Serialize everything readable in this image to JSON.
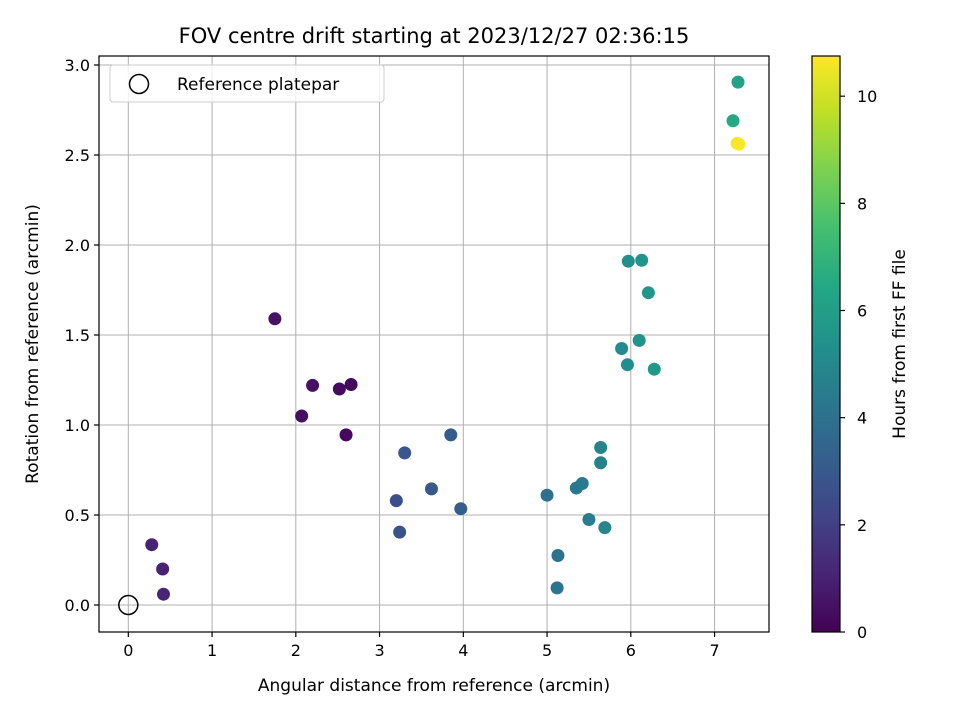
{
  "chart_data": {
    "type": "scatter",
    "title": "FOV centre drift starting at 2023/12/27 02:36:15",
    "xlabel": "Angular distance from reference (arcmin)",
    "ylabel": "Rotation from reference (arcmin)",
    "xlim": [
      -0.35,
      7.65
    ],
    "ylim": [
      -0.15,
      3.05
    ],
    "xticks": [
      0,
      1,
      2,
      3,
      4,
      5,
      6,
      7
    ],
    "yticks": [
      0.0,
      0.5,
      1.0,
      1.5,
      2.0,
      2.5,
      3.0
    ],
    "xtick_labels": [
      "0",
      "1",
      "2",
      "3",
      "4",
      "5",
      "6",
      "7"
    ],
    "ytick_labels": [
      "0.0",
      "0.5",
      "1.0",
      "1.5",
      "2.0",
      "2.5",
      "3.0"
    ],
    "grid": true,
    "legend": {
      "position": "top-left",
      "entries": [
        "Reference platepar"
      ]
    },
    "reference_point": {
      "x": 0.0,
      "y": 0.0
    },
    "colorbar": {
      "label": "Hours from first FF file",
      "range": [
        0,
        10.75
      ],
      "ticks": [
        0,
        2,
        4,
        6,
        8,
        10
      ],
      "tick_labels": [
        "0",
        "2",
        "4",
        "6",
        "8",
        "10"
      ],
      "colormap": "viridis"
    },
    "points": [
      {
        "x": 0.28,
        "y": 0.335,
        "c": 1.0
      },
      {
        "x": 0.41,
        "y": 0.2,
        "c": 1.05
      },
      {
        "x": 0.42,
        "y": 0.06,
        "c": 1.1
      },
      {
        "x": 1.75,
        "y": 1.59,
        "c": 0.55
      },
      {
        "x": 2.07,
        "y": 1.05,
        "c": 0.45
      },
      {
        "x": 2.2,
        "y": 1.22,
        "c": 0.5
      },
      {
        "x": 2.52,
        "y": 1.2,
        "c": 0.3
      },
      {
        "x": 2.66,
        "y": 1.225,
        "c": 0.25
      },
      {
        "x": 2.6,
        "y": 0.945,
        "c": 0.2
      },
      {
        "x": 3.2,
        "y": 0.58,
        "c": 2.6
      },
      {
        "x": 3.24,
        "y": 0.405,
        "c": 2.8
      },
      {
        "x": 3.3,
        "y": 0.845,
        "c": 2.9
      },
      {
        "x": 3.62,
        "y": 0.645,
        "c": 3.0
      },
      {
        "x": 3.85,
        "y": 0.945,
        "c": 3.1
      },
      {
        "x": 3.97,
        "y": 0.535,
        "c": 3.2
      },
      {
        "x": 5.0,
        "y": 0.61,
        "c": 4.0
      },
      {
        "x": 5.13,
        "y": 0.275,
        "c": 4.1
      },
      {
        "x": 5.12,
        "y": 0.095,
        "c": 4.2
      },
      {
        "x": 5.35,
        "y": 0.65,
        "c": 4.3
      },
      {
        "x": 5.42,
        "y": 0.675,
        "c": 4.4
      },
      {
        "x": 5.5,
        "y": 0.475,
        "c": 4.5
      },
      {
        "x": 5.64,
        "y": 0.79,
        "c": 4.7
      },
      {
        "x": 5.64,
        "y": 0.875,
        "c": 4.8
      },
      {
        "x": 5.69,
        "y": 0.43,
        "c": 4.9
      },
      {
        "x": 5.89,
        "y": 1.425,
        "c": 5.1
      },
      {
        "x": 5.96,
        "y": 1.335,
        "c": 5.2
      },
      {
        "x": 5.97,
        "y": 1.91,
        "c": 5.3
      },
      {
        "x": 6.1,
        "y": 1.47,
        "c": 5.4
      },
      {
        "x": 6.13,
        "y": 1.915,
        "c": 5.5
      },
      {
        "x": 6.21,
        "y": 1.735,
        "c": 5.6
      },
      {
        "x": 6.28,
        "y": 1.31,
        "c": 5.7
      },
      {
        "x": 7.28,
        "y": 2.905,
        "c": 6.2
      },
      {
        "x": 7.22,
        "y": 2.69,
        "c": 6.5
      },
      {
        "x": 7.27,
        "y": 2.565,
        "c": 10.6
      },
      {
        "x": 7.29,
        "y": 2.56,
        "c": 10.7
      }
    ]
  }
}
